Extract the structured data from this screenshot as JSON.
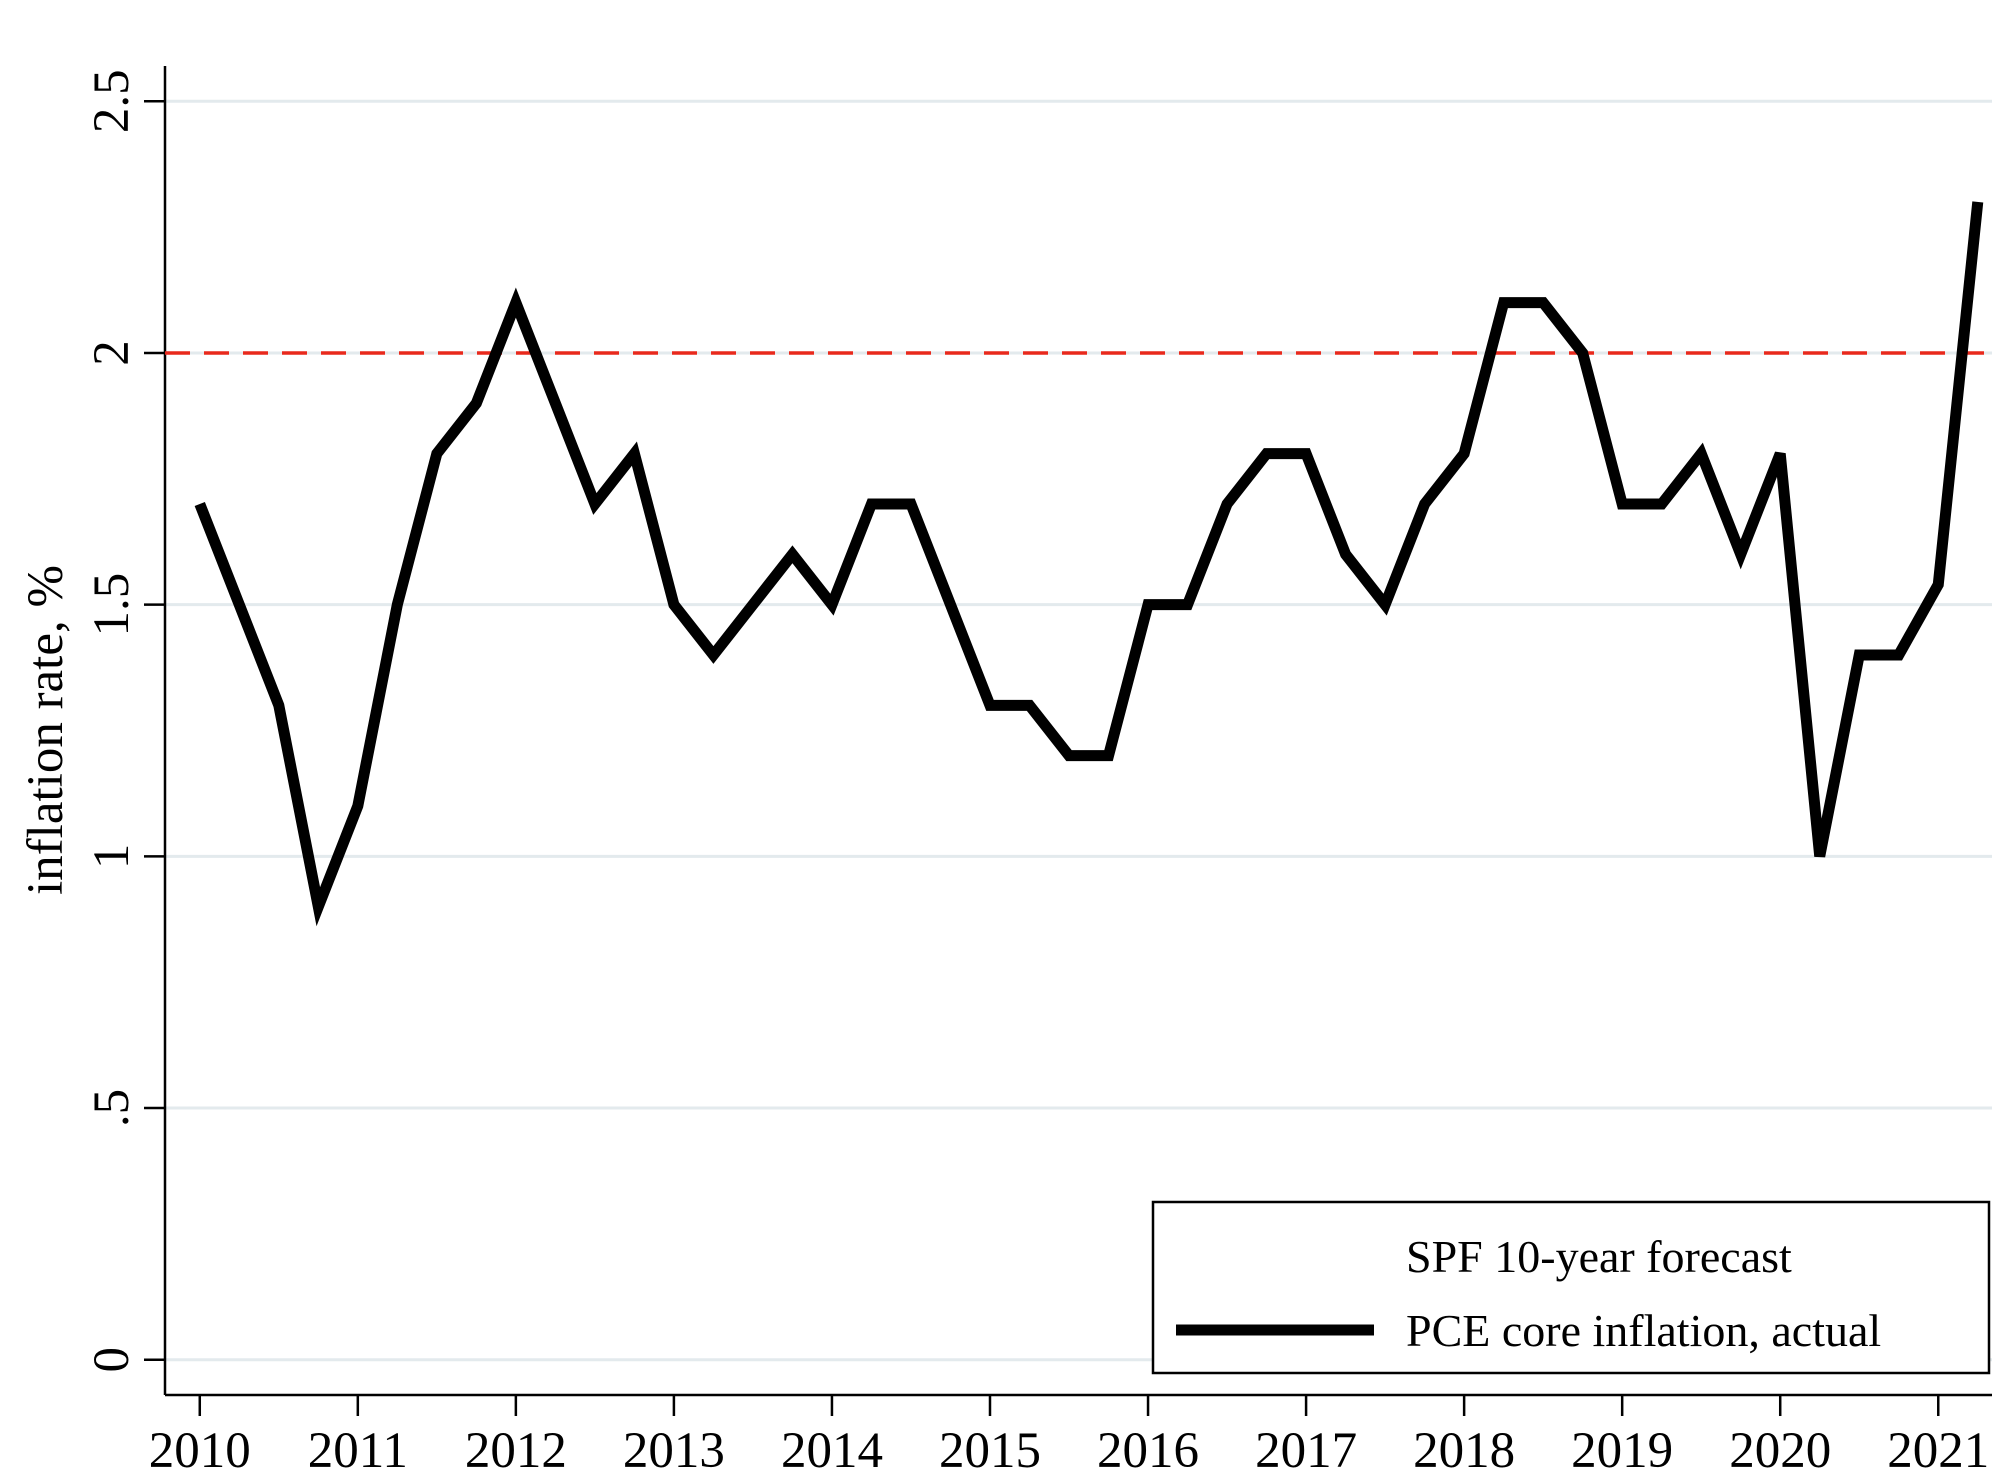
{
  "chart_data": {
    "type": "line",
    "y_label": "inflation rate, %",
    "x": [
      2010,
      2010.25,
      2010.5,
      2010.75,
      2011,
      2011.25,
      2011.5,
      2011.75,
      2012,
      2012.25,
      2012.5,
      2012.75,
      2013,
      2013.25,
      2013.5,
      2013.75,
      2014,
      2014.25,
      2014.5,
      2014.75,
      2015,
      2015.25,
      2015.5,
      2015.75,
      2016,
      2016.25,
      2016.5,
      2016.75,
      2017,
      2017.25,
      2017.5,
      2017.75,
      2018,
      2018.25,
      2018.5,
      2018.75,
      2019,
      2019.25,
      2019.5,
      2019.75,
      2020,
      2020.25,
      2020.5,
      2020.75,
      2021,
      2021.25
    ],
    "series": [
      {
        "name": "PCE core inflation, actual",
        "color": "#000000",
        "values": [
          1.7,
          1.5,
          1.3,
          0.9,
          1.1,
          1.5,
          1.8,
          1.9,
          2.1,
          1.9,
          1.7,
          1.8,
          1.5,
          1.4,
          1.5,
          1.6,
          1.5,
          1.7,
          1.7,
          1.5,
          1.3,
          1.3,
          1.2,
          1.2,
          1.5,
          1.5,
          1.7,
          1.8,
          1.8,
          1.6,
          1.5,
          1.7,
          1.8,
          2.1,
          2.1,
          2.0,
          1.7,
          1.7,
          1.8,
          1.6,
          1.8,
          1.0,
          1.4,
          1.4,
          1.54,
          2.3
        ]
      }
    ],
    "reference_line": {
      "name": "SPF 10-year forecast",
      "value": 2,
      "color": "#e8291c",
      "dashed": true
    },
    "xlim": [
      2009.78,
      2021.34
    ],
    "xticks": [
      2010,
      2011,
      2012,
      2013,
      2014,
      2015,
      2016,
      2017,
      2018,
      2019,
      2020,
      2021
    ],
    "ylim": [
      -0.07,
      2.57
    ],
    "yticks": [
      0,
      {
        "value": 0.5,
        "label": ".5"
      },
      1,
      1.5,
      2,
      2.5
    ],
    "grid": true,
    "legend": "bottom-right"
  }
}
